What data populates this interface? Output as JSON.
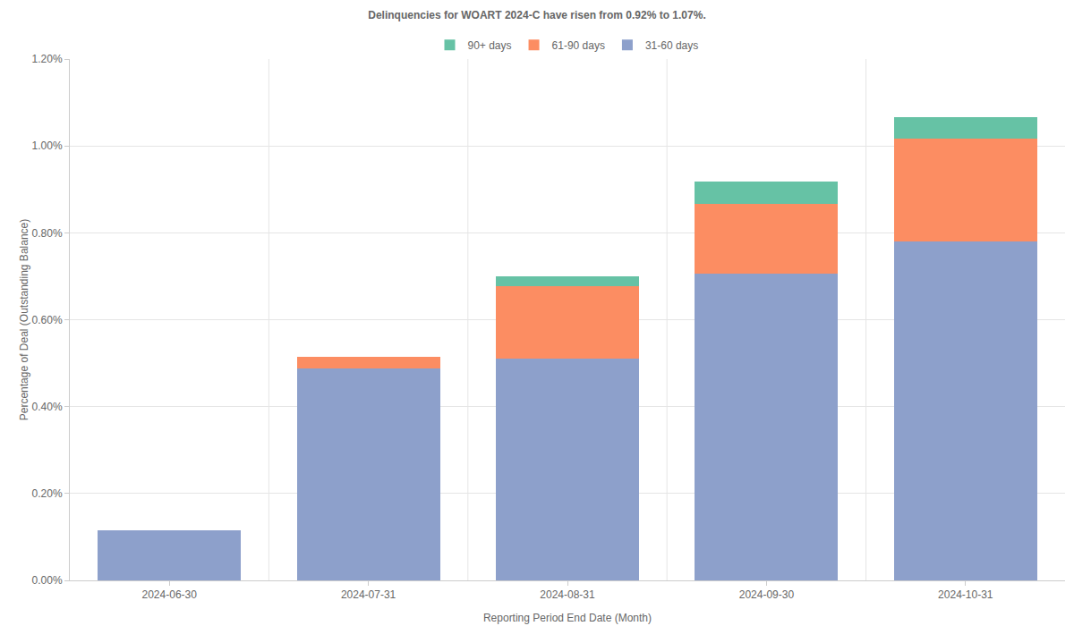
{
  "chart_data": {
    "type": "bar",
    "title": "Delinquencies for WOART 2024-C have risen from 0.92% to 1.07%.",
    "x_label": "Reporting Period End Date (Month)",
    "y_label": "Percentage of Deal (Outstanding Balance)",
    "categories": [
      "2024-06-30",
      "2024-07-31",
      "2024-08-31",
      "2024-09-30",
      "2024-10-31"
    ],
    "series": [
      {
        "name": "31-60 days",
        "color": "#8da0cb",
        "values": [
          0.115,
          0.488,
          0.51,
          0.707,
          0.78
        ]
      },
      {
        "name": "61-90 days",
        "color": "#fc8d62",
        "values": [
          0,
          0.027,
          0.168,
          0.16,
          0.237
        ]
      },
      {
        "name": "90+ days",
        "color": "#66c2a5",
        "values": [
          0,
          0,
          0.022,
          0.05,
          0.05
        ]
      }
    ],
    "ylim": [
      0,
      1.2
    ],
    "yticks": [
      {
        "value": 0,
        "label": "0.00%"
      },
      {
        "value": 0.2,
        "label": "0.20%"
      },
      {
        "value": 0.4,
        "label": "0.40%"
      },
      {
        "value": 0.6,
        "label": "0.60%"
      },
      {
        "value": 0.8,
        "label": "0.80%"
      },
      {
        "value": 1.0,
        "label": "1.00%"
      },
      {
        "value": 1.2,
        "label": "1.20%"
      }
    ],
    "stacked": true,
    "grid": true,
    "legend": "top"
  }
}
